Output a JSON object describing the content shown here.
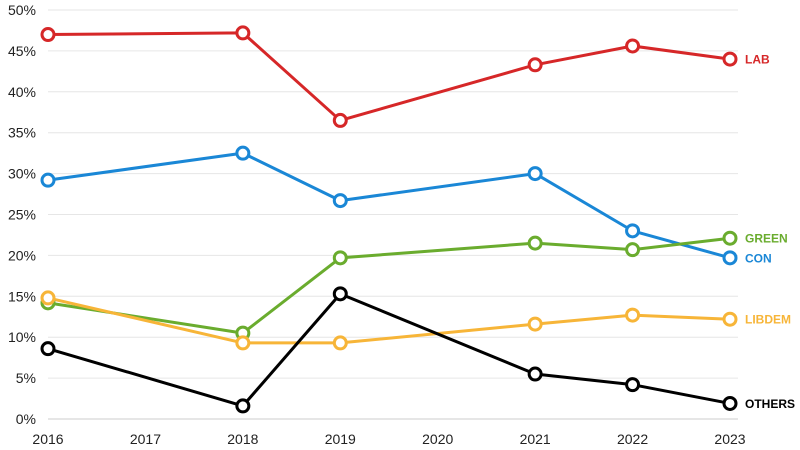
{
  "chart_data": {
    "type": "line",
    "title": "",
    "xlabel": "",
    "ylabel": "",
    "x_ticks": [
      "2016",
      "2017",
      "2018",
      "2019",
      "2020",
      "2021",
      "2022",
      "2023"
    ],
    "y_ticks": [
      "0%",
      "5%",
      "10%",
      "15%",
      "20%",
      "25%",
      "30%",
      "35%",
      "40%",
      "45%",
      "50%"
    ],
    "xlim": [
      2016,
      2023
    ],
    "ylim": [
      0,
      50
    ],
    "grid": true,
    "legend": "direct labels at right end of each line",
    "x": [
      2016,
      2018,
      2019,
      2021,
      2022,
      2023
    ],
    "series": [
      {
        "name": "LAB",
        "color": "#d62728",
        "values": [
          47.0,
          47.2,
          36.5,
          43.3,
          45.6,
          44.0
        ]
      },
      {
        "name": "CON",
        "color": "#1a87d6",
        "values": [
          29.2,
          32.5,
          26.7,
          30.0,
          23.0,
          19.7
        ]
      },
      {
        "name": "GREEN",
        "color": "#6aac2e",
        "values": [
          14.2,
          10.5,
          19.7,
          21.5,
          20.7,
          22.1
        ]
      },
      {
        "name": "LIBDEM",
        "color": "#f7b538",
        "values": [
          14.8,
          9.3,
          9.3,
          11.6,
          12.7,
          12.2
        ]
      },
      {
        "name": "OTHERS",
        "color": "#000000",
        "values": [
          8.6,
          1.6,
          15.3,
          5.5,
          4.2,
          1.9
        ]
      }
    ]
  }
}
